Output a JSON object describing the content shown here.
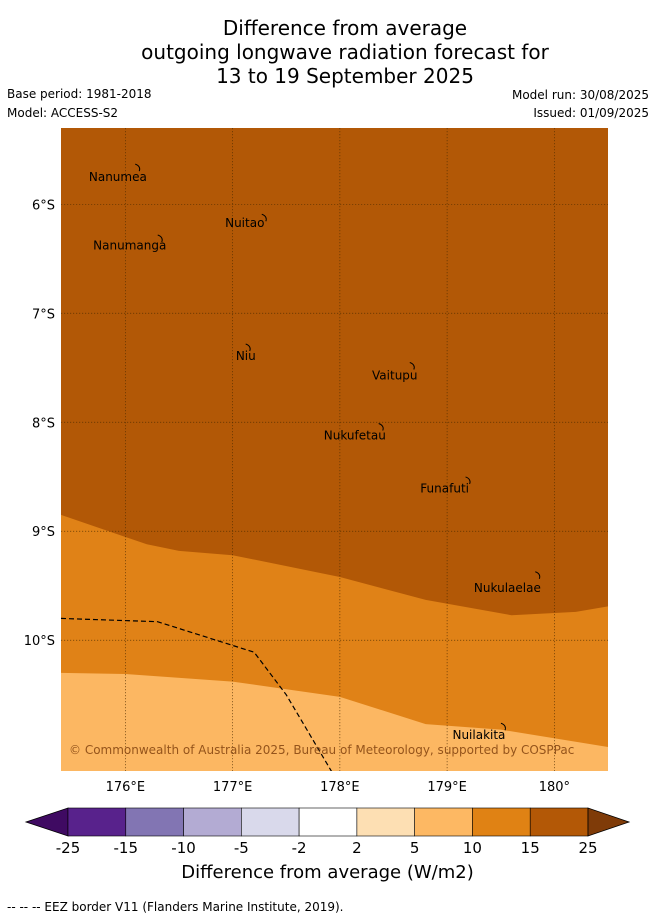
{
  "title_lines": [
    "Difference from average",
    "outgoing longwave radiation forecast for",
    "13 to 19 September 2025"
  ],
  "base_period": "Base period: 1981-2018",
  "model": "Model: ACCESS-S2",
  "model_run": "Model run: 30/08/2025",
  "issued": "Issued: 01/09/2025",
  "map": {
    "lon_range": [
      175.4,
      180.5
    ],
    "lat_range": [
      -11.2,
      -5.3
    ],
    "lon_ticks": [
      {
        "value": 176,
        "label": "176°E"
      },
      {
        "value": 177,
        "label": "177°E"
      },
      {
        "value": 178,
        "label": "178°E"
      },
      {
        "value": 179,
        "label": "179°E"
      },
      {
        "value": 180,
        "label": "180°"
      }
    ],
    "lat_ticks": [
      {
        "value": -6,
        "label": "6°S"
      },
      {
        "value": -7,
        "label": "7°S"
      },
      {
        "value": -8,
        "label": "8°S"
      },
      {
        "value": -9,
        "label": "9°S"
      },
      {
        "value": -10,
        "label": "10°S"
      }
    ],
    "colors": {
      "band_15_25": "#b25806",
      "band_10_15": "#e08217",
      "band_5_10": "#fcb762",
      "gridline": "#4a2a00"
    },
    "band_boundaries": {
      "b15_lat_by_lon": [
        [
          175.4,
          -8.85
        ],
        [
          176.2,
          -9.12
        ],
        [
          176.5,
          -9.18
        ],
        [
          177.0,
          -9.22
        ],
        [
          178.0,
          -9.42
        ],
        [
          178.8,
          -9.63
        ],
        [
          179.6,
          -9.77
        ],
        [
          180.2,
          -9.74
        ],
        [
          180.5,
          -9.69
        ]
      ],
      "b10_lat_by_lon": [
        [
          175.4,
          -10.3
        ],
        [
          176.0,
          -10.31
        ],
        [
          177.0,
          -10.38
        ],
        [
          178.0,
          -10.52
        ],
        [
          178.8,
          -10.77
        ],
        [
          179.5,
          -10.82
        ],
        [
          180.5,
          -10.98
        ]
      ]
    },
    "eez_border": [
      [
        175.4,
        -9.8
      ],
      [
        176.3,
        -9.83
      ],
      [
        177.2,
        -10.11
      ],
      [
        177.5,
        -10.5
      ],
      [
        177.95,
        -11.25
      ]
    ],
    "islands": [
      {
        "name": "Nanumea",
        "lon": 176.12,
        "lat": -5.65,
        "label_lon": 175.66,
        "label_lat": -5.75
      },
      {
        "name": "Nuitao",
        "lon": 177.3,
        "lat": -6.11,
        "label_lon": 176.93,
        "label_lat": -6.17
      },
      {
        "name": "Nanumanga",
        "lon": 176.33,
        "lat": -6.3,
        "label_lon": 175.7,
        "label_lat": -6.38
      },
      {
        "name": "Niu",
        "lon": 177.15,
        "lat": -7.3,
        "label_lon": 177.03,
        "label_lat": -7.39
      },
      {
        "name": "Vaitupu",
        "lon": 178.68,
        "lat": -7.47,
        "label_lon": 178.3,
        "label_lat": -7.57
      },
      {
        "name": "Nukufetau",
        "lon": 178.39,
        "lat": -8.03,
        "label_lon": 177.85,
        "label_lat": -8.12
      },
      {
        "name": "Funafuti",
        "lon": 179.2,
        "lat": -8.52,
        "label_lon": 178.75,
        "label_lat": -8.61
      },
      {
        "name": "Nukulaelae",
        "lon": 179.85,
        "lat": -9.39,
        "label_lon": 179.25,
        "label_lat": -9.52
      },
      {
        "name": "Nuilakita",
        "lon": 179.53,
        "lat": -10.78,
        "label_lon": 179.05,
        "label_lat": -10.87
      }
    ],
    "copyright": "© Commonwealth of Australia 2025, Bureau of Meteorology, supported by COSPPac"
  },
  "colorbar": {
    "labels": [
      "-25",
      "-15",
      "-10",
      "-5",
      "-2",
      "2",
      "5",
      "10",
      "15",
      "25"
    ],
    "colors": [
      "#3f0a62",
      "#58228c",
      "#8275b3",
      "#b3abd3",
      "#d9d9eb",
      "#ffffff",
      "#fddfb3",
      "#fdb863",
      "#e08214",
      "#b35806",
      "#7f3b08"
    ],
    "title": "Difference from average (W/m2)"
  },
  "footer": "--  --  -- EEZ border V11 (Flanders Marine Institute, 2019)."
}
